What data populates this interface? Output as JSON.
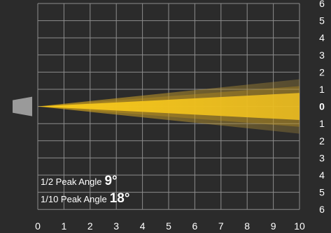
{
  "chart_data": {
    "type": "beam-diagram",
    "x_ticks": [
      "0",
      "1",
      "2",
      "3",
      "4",
      "5",
      "6",
      "7",
      "8",
      "9",
      "10"
    ],
    "y_ticks": [
      "6",
      "5",
      "4",
      "3",
      "2",
      "1",
      "0",
      "1",
      "2",
      "3",
      "4",
      "5",
      "6"
    ],
    "xlim": [
      0,
      10
    ],
    "ylim": [
      -6,
      6
    ],
    "half_peak_angle_deg": 9,
    "tenth_peak_angle_deg": 18,
    "grid": true,
    "colors": {
      "background": "#2b2b2b",
      "grid": "#8d8d8d",
      "beam_core": "#f4c419",
      "beam_outer": "#c89a1a",
      "fixture": "#9a9a9a"
    }
  },
  "legend": {
    "half_label": "1/2 Peak Angle",
    "half_value": "9°",
    "tenth_label": "1/10 Peak Angle",
    "tenth_value": "18°"
  }
}
